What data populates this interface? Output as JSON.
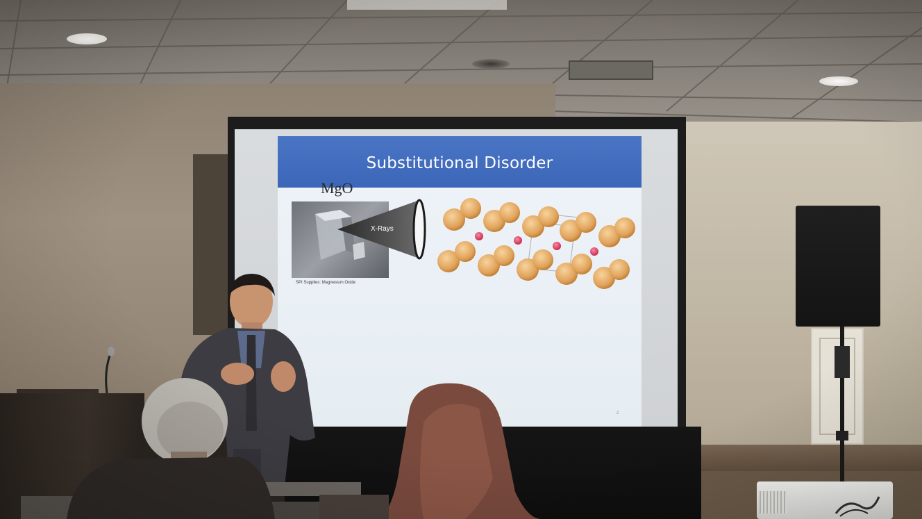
{
  "slide": {
    "title": "Substitutional Disorder",
    "compound": "MgO",
    "beam_label": "X-Rays",
    "photo_caption": "SPI Supplies: Magnesium Oxide",
    "page_number": "2"
  },
  "colors": {
    "title_bar": "#3c66b8",
    "slide_background": "#eaf0f5",
    "mg_atom": "#e0a25a",
    "o_atom": "#d8345a",
    "wall_right": "#c6bca9",
    "wall_left": "#9a8c7b",
    "presenter_suit": "#3d3c42"
  }
}
